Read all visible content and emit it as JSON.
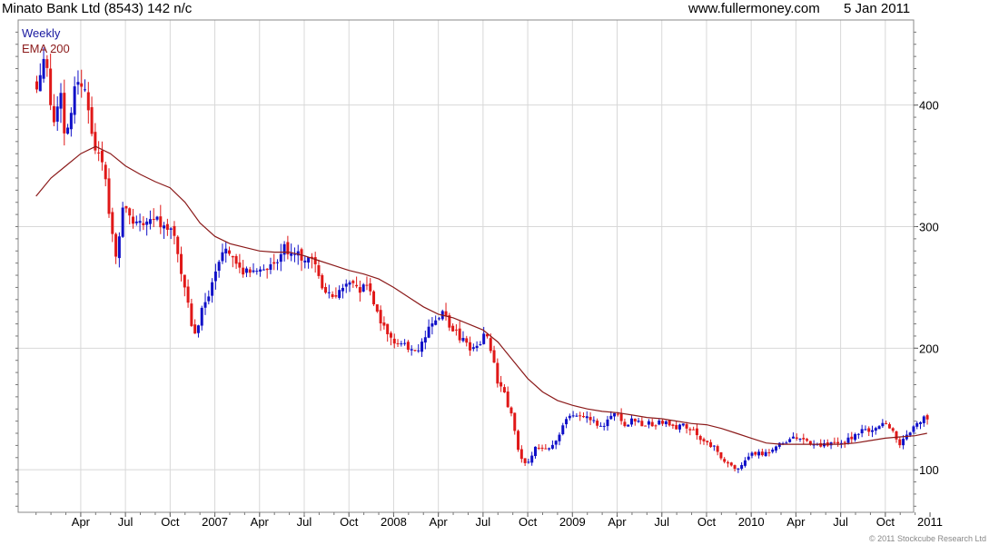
{
  "header": {
    "title": "Minato Bank Ltd (8543) 142 n/c",
    "website": "www.fullermoney.com",
    "date": "5 Jan 2011"
  },
  "copyright": "© 2011 Stockcube Research Ltd",
  "colors": {
    "up": "#1010c8",
    "down": "#e01818",
    "ema": "#8b1a1a",
    "grid": "#d8d8d8",
    "legend_weekly": "#1a1aa0",
    "legend_ema": "#8b1a1a"
  },
  "chart_data": {
    "type": "candlestick",
    "title": "Minato Bank Ltd (8543) 142 n/c",
    "legend": [
      "Weekly",
      "EMA 200"
    ],
    "legend_position": "top-left",
    "grid": true,
    "y_axis_side": "right",
    "ylim": [
      65,
      470
    ],
    "y_ticks": [
      100,
      200,
      300,
      400
    ],
    "x_range": [
      -1.2,
      58.9
    ],
    "x_ticks": [
      {
        "label": "Apr",
        "m": 3
      },
      {
        "label": "Jul",
        "m": 6
      },
      {
        "label": "Oct",
        "m": 9
      },
      {
        "label": "2007",
        "m": 12
      },
      {
        "label": "Apr",
        "m": 15
      },
      {
        "label": "Jul",
        "m": 18
      },
      {
        "label": "Oct",
        "m": 21
      },
      {
        "label": "2008",
        "m": 24
      },
      {
        "label": "Apr",
        "m": 27
      },
      {
        "label": "Jul",
        "m": 30
      },
      {
        "label": "Oct",
        "m": 33
      },
      {
        "label": "2009",
        "m": 36
      },
      {
        "label": "Apr",
        "m": 39
      },
      {
        "label": "Jul",
        "m": 42
      },
      {
        "label": "Oct",
        "m": 45
      },
      {
        "label": "2010",
        "m": 48
      },
      {
        "label": "Apr",
        "m": 51
      },
      {
        "label": "Jul",
        "m": 54
      },
      {
        "label": "Oct",
        "m": 57
      },
      {
        "label": "2011",
        "m": 60
      }
    ],
    "price_path": [
      [
        0.1,
        420
      ],
      [
        0.6,
        445
      ],
      [
        1.1,
        385
      ],
      [
        1.6,
        410
      ],
      [
        2.0,
        372
      ],
      [
        2.4,
        400
      ],
      [
        2.9,
        430
      ],
      [
        3.5,
        395
      ],
      [
        4.1,
        362
      ],
      [
        4.6,
        340
      ],
      [
        5.0,
        305
      ],
      [
        5.4,
        275
      ],
      [
        5.9,
        318
      ],
      [
        6.4,
        305
      ],
      [
        7.0,
        300
      ],
      [
        7.6,
        310
      ],
      [
        8.1,
        305
      ],
      [
        8.6,
        302
      ],
      [
        9.1,
        300
      ],
      [
        9.6,
        268
      ],
      [
        10.1,
        243
      ],
      [
        10.5,
        215
      ],
      [
        10.8,
        215
      ],
      [
        11.2,
        238
      ],
      [
        11.6,
        245
      ],
      [
        12.0,
        262
      ],
      [
        12.5,
        282
      ],
      [
        13.0,
        282
      ],
      [
        13.5,
        272
      ],
      [
        14.0,
        262
      ],
      [
        14.6,
        262
      ],
      [
        15.1,
        265
      ],
      [
        15.6,
        262
      ],
      [
        16.2,
        275
      ],
      [
        16.7,
        282
      ],
      [
        17.2,
        276
      ],
      [
        17.7,
        275
      ],
      [
        18.2,
        272
      ],
      [
        18.7,
        268
      ],
      [
        19.2,
        250
      ],
      [
        19.7,
        242
      ],
      [
        20.2,
        247
      ],
      [
        20.8,
        255
      ],
      [
        21.3,
        250
      ],
      [
        21.8,
        245
      ],
      [
        22.2,
        253
      ],
      [
        22.6,
        242
      ],
      [
        23.1,
        222
      ],
      [
        23.6,
        208
      ],
      [
        24.1,
        205
      ],
      [
        24.6,
        205
      ],
      [
        25.1,
        198
      ],
      [
        25.6,
        195
      ],
      [
        26.1,
        210
      ],
      [
        26.6,
        218
      ],
      [
        27.1,
        222
      ],
      [
        27.4,
        232
      ],
      [
        27.8,
        218
      ],
      [
        28.3,
        210
      ],
      [
        28.8,
        203
      ],
      [
        29.3,
        200
      ],
      [
        29.8,
        205
      ],
      [
        30.2,
        215
      ],
      [
        30.6,
        195
      ],
      [
        31.0,
        170
      ],
      [
        31.5,
        160
      ],
      [
        32.0,
        140
      ],
      [
        32.5,
        108
      ],
      [
        33.0,
        105
      ],
      [
        33.5,
        117
      ],
      [
        34.0,
        118
      ],
      [
        34.5,
        120
      ],
      [
        35.0,
        125
      ],
      [
        35.5,
        140
      ],
      [
        36.0,
        145
      ],
      [
        36.5,
        145
      ],
      [
        37.0,
        145
      ],
      [
        37.5,
        140
      ],
      [
        38.0,
        135
      ],
      [
        38.5,
        145
      ],
      [
        39.0,
        145
      ],
      [
        39.5,
        138
      ],
      [
        40.0,
        140
      ],
      [
        40.5,
        138
      ],
      [
        41.0,
        138
      ],
      [
        41.5,
        137
      ],
      [
        42.0,
        140
      ],
      [
        42.5,
        138
      ],
      [
        43.0,
        135
      ],
      [
        43.5,
        137
      ],
      [
        44.0,
        133
      ],
      [
        44.5,
        127
      ],
      [
        45.0,
        122
      ],
      [
        45.5,
        118
      ],
      [
        46.0,
        110
      ],
      [
        46.5,
        103
      ],
      [
        47.0,
        102
      ],
      [
        47.5,
        105
      ],
      [
        48.0,
        112
      ],
      [
        48.5,
        113
      ],
      [
        49.0,
        115
      ],
      [
        49.5,
        118
      ],
      [
        50.0,
        122
      ],
      [
        50.5,
        124
      ],
      [
        51.0,
        126
      ],
      [
        51.5,
        124
      ],
      [
        52.0,
        122
      ],
      [
        52.5,
        120
      ],
      [
        53.0,
        122
      ],
      [
        53.5,
        120
      ],
      [
        54.0,
        122
      ],
      [
        54.5,
        125
      ],
      [
        55.0,
        128
      ],
      [
        55.5,
        132
      ],
      [
        56.0,
        133
      ],
      [
        56.5,
        135
      ],
      [
        57.0,
        137
      ],
      [
        57.5,
        132
      ],
      [
        58.0,
        120
      ],
      [
        58.5,
        130
      ],
      [
        59.0,
        138
      ],
      [
        59.5,
        142
      ],
      [
        60.0,
        142
      ]
    ],
    "ema_path": [
      [
        0.0,
        325
      ],
      [
        1.0,
        340
      ],
      [
        2.0,
        350
      ],
      [
        3.0,
        360
      ],
      [
        4.0,
        366
      ],
      [
        5.0,
        360
      ],
      [
        6.0,
        350
      ],
      [
        7.0,
        343
      ],
      [
        8.0,
        337
      ],
      [
        9.0,
        332
      ],
      [
        10.0,
        320
      ],
      [
        11.0,
        303
      ],
      [
        12.0,
        292
      ],
      [
        13.0,
        286
      ],
      [
        14.0,
        283
      ],
      [
        15.0,
        280
      ],
      [
        16.0,
        279
      ],
      [
        17.0,
        279
      ],
      [
        18.0,
        276
      ],
      [
        19.0,
        272
      ],
      [
        20.0,
        268
      ],
      [
        21.0,
        264
      ],
      [
        22.0,
        261
      ],
      [
        23.0,
        257
      ],
      [
        24.0,
        250
      ],
      [
        25.0,
        242
      ],
      [
        26.0,
        234
      ],
      [
        27.0,
        228
      ],
      [
        28.0,
        225
      ],
      [
        29.0,
        220
      ],
      [
        30.0,
        215
      ],
      [
        31.0,
        205
      ],
      [
        32.0,
        190
      ],
      [
        33.0,
        175
      ],
      [
        34.0,
        164
      ],
      [
        35.0,
        157
      ],
      [
        36.0,
        153
      ],
      [
        37.0,
        150
      ],
      [
        38.0,
        148
      ],
      [
        39.0,
        147
      ],
      [
        40.0,
        145
      ],
      [
        41.0,
        143
      ],
      [
        42.0,
        142
      ],
      [
        43.0,
        140
      ],
      [
        44.0,
        138
      ],
      [
        45.0,
        137
      ],
      [
        46.0,
        134
      ],
      [
        47.0,
        130
      ],
      [
        48.0,
        126
      ],
      [
        49.0,
        122
      ],
      [
        50.0,
        121
      ],
      [
        51.0,
        121
      ],
      [
        52.0,
        121
      ],
      [
        53.0,
        121
      ],
      [
        54.0,
        121
      ],
      [
        55.0,
        122
      ],
      [
        56.0,
        124
      ],
      [
        57.0,
        126
      ],
      [
        58.0,
        127
      ],
      [
        59.0,
        128
      ],
      [
        59.8,
        130
      ]
    ]
  }
}
